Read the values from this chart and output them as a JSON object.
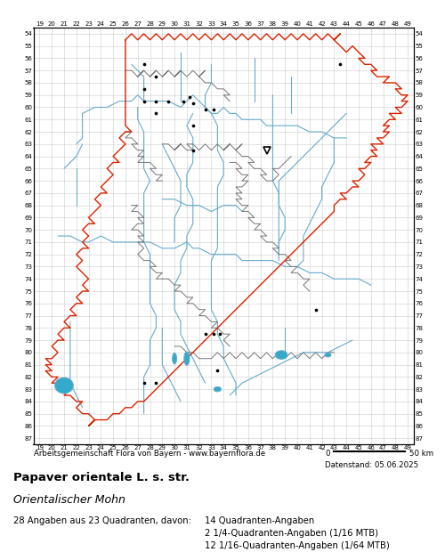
{
  "title": "Papaver orientale L. s. str.",
  "subtitle": "Orientalischer Mohn",
  "attribution": "Arbeitsgemeinschaft Flora von Bayern - www.bayernflora.de",
  "date_label": "Datenstand: 05.06.2025",
  "stats_line1": "28 Angaben aus 23 Quadranten, davon:",
  "stats_right1": "14 Quadranten-Angaben",
  "stats_right2": "2 1/4-Quadranten-Angaben (1/16 MTB)",
  "stats_right3": "12 1/16-Quadranten-Angaben (1/64 MTB)",
  "x_min": 19,
  "x_max": 49,
  "y_min": 54,
  "y_max": 87,
  "grid_color": "#cccccc",
  "bg_color": "#ffffff",
  "border_color_red": "#dd2200",
  "border_color_gray": "#777777",
  "river_color": "#66aacc",
  "dot_color": "#000000",
  "lake_color": "#33aacc",
  "dot_points": [
    [
      27.5,
      56.5
    ],
    [
      28.5,
      57.5
    ],
    [
      27.5,
      58.5
    ],
    [
      27.5,
      59.5
    ],
    [
      28.5,
      59.5
    ],
    [
      29.5,
      59.5
    ],
    [
      28.5,
      60.5
    ],
    [
      30.7,
      59.5
    ],
    [
      31.2,
      59.2
    ],
    [
      31.5,
      59.7
    ],
    [
      32.5,
      60.2
    ],
    [
      33.2,
      60.2
    ],
    [
      31.5,
      61.5
    ],
    [
      31.5,
      63.5
    ],
    [
      43.5,
      56.5
    ],
    [
      27.5,
      82.5
    ],
    [
      28.5,
      82.5
    ],
    [
      32.5,
      78.5
    ],
    [
      33.2,
      78.5
    ],
    [
      33.7,
      78.5
    ],
    [
      33.5,
      81.5
    ],
    [
      41.5,
      76.5
    ]
  ],
  "triangle_points": [
    [
      37.5,
      63.5
    ]
  ]
}
